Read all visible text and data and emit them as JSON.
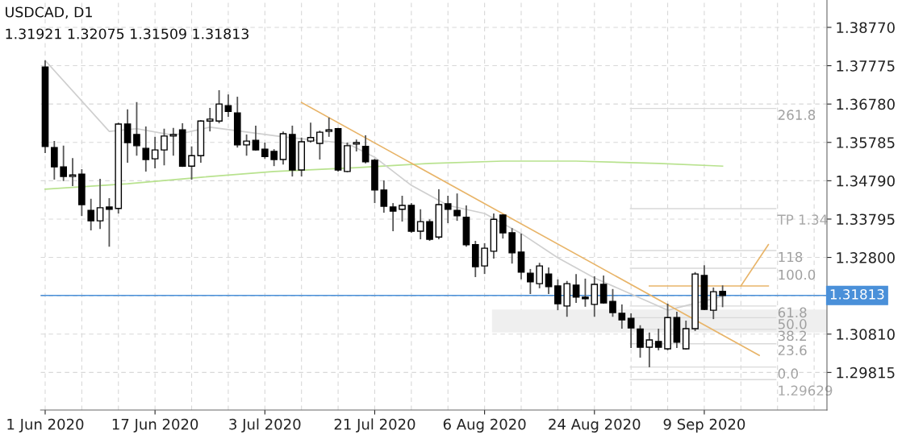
{
  "chart_data": {
    "type": "candlestick",
    "title": "USDCAD, D1",
    "subtitle": "1.31921 1.32075 1.31509 1.31813",
    "categories": [
      "1 Jun 2020",
      null,
      null,
      null,
      null,
      null,
      null,
      null,
      null,
      null,
      null,
      null,
      "17 Jun 2020",
      null,
      null,
      null,
      null,
      null,
      null,
      null,
      null,
      null,
      null,
      null,
      "3 Jul 2020",
      null,
      null,
      null,
      null,
      null,
      null,
      null,
      null,
      null,
      null,
      null,
      "21 Jul 2020",
      null,
      null,
      null,
      null,
      null,
      null,
      null,
      null,
      null,
      null,
      null,
      "6 Aug 2020",
      null,
      null,
      null,
      null,
      null,
      null,
      null,
      null,
      null,
      null,
      null,
      "24 Aug 2020",
      null,
      null,
      null,
      null,
      null,
      null,
      null,
      null,
      null,
      null,
      null,
      "9 Sep 2020",
      null,
      null,
      null,
      null,
      null,
      null,
      null,
      null,
      null,
      null,
      null,
      null,
      null
    ],
    "ohlc": [
      [
        1.3774,
        1.3791,
        1.3551,
        1.3568
      ],
      [
        1.3565,
        1.3582,
        1.3482,
        1.3515
      ],
      [
        1.3515,
        1.357,
        1.3478,
        1.349
      ],
      [
        1.349,
        1.3538,
        1.3465,
        1.3494
      ],
      [
        1.3496,
        1.3509,
        1.3388,
        1.3417
      ],
      [
        1.3402,
        1.3432,
        1.335,
        1.3375
      ],
      [
        1.3375,
        1.3484,
        1.3354,
        1.3409
      ],
      [
        1.3411,
        1.3434,
        1.3308,
        1.3405
      ],
      [
        1.3407,
        1.363,
        1.3394,
        1.3626
      ],
      [
        1.3626,
        1.3664,
        1.3526,
        1.3578
      ],
      [
        1.3599,
        1.3683,
        1.3544,
        1.357
      ],
      [
        1.3563,
        1.362,
        1.3503,
        1.3534
      ],
      [
        1.3536,
        1.3593,
        1.3511,
        1.3559
      ],
      [
        1.3559,
        1.3614,
        1.3519,
        1.3595
      ],
      [
        1.3595,
        1.3616,
        1.3544,
        1.3599
      ],
      [
        1.3611,
        1.3628,
        1.3515,
        1.3517
      ],
      [
        1.3517,
        1.3568,
        1.3482,
        1.3544
      ],
      [
        1.3544,
        1.3636,
        1.3526,
        1.3634
      ],
      [
        1.3634,
        1.3668,
        1.3607,
        1.3639
      ],
      [
        1.3634,
        1.3714,
        1.3628,
        1.3678
      ],
      [
        1.3674,
        1.3703,
        1.3645,
        1.3659
      ],
      [
        1.3655,
        1.3697,
        1.3565,
        1.3572
      ],
      [
        1.3572,
        1.3599,
        1.3544,
        1.3582
      ],
      [
        1.3584,
        1.3622,
        1.3557,
        1.3559
      ],
      [
        1.3561,
        1.3578,
        1.3536,
        1.3542
      ],
      [
        1.3555,
        1.3561,
        1.3517,
        1.3534
      ],
      [
        1.3534,
        1.3607,
        1.3521,
        1.3601
      ],
      [
        1.3599,
        1.3622,
        1.349,
        1.3507
      ],
      [
        1.3507,
        1.3591,
        1.349,
        1.358
      ],
      [
        1.3582,
        1.363,
        1.3578,
        1.3591
      ],
      [
        1.3576,
        1.3609,
        1.3534,
        1.3605
      ],
      [
        1.3607,
        1.3643,
        1.3593,
        1.3611
      ],
      [
        1.3614,
        1.3616,
        1.3503,
        1.3507
      ],
      [
        1.3503,
        1.3578,
        1.3501,
        1.357
      ],
      [
        1.3574,
        1.3586,
        1.3555,
        1.3578
      ],
      [
        1.3568,
        1.3597,
        1.3524,
        1.3528
      ],
      [
        1.3532,
        1.3536,
        1.3421,
        1.3455
      ],
      [
        1.3455,
        1.348,
        1.3396,
        1.3413
      ],
      [
        1.3411,
        1.3421,
        1.3348,
        1.34
      ],
      [
        1.3405,
        1.344,
        1.3373,
        1.3415
      ],
      [
        1.3415,
        1.3421,
        1.3344,
        1.3348
      ],
      [
        1.3348,
        1.3405,
        1.3327,
        1.3373
      ],
      [
        1.3373,
        1.3379,
        1.3323,
        1.3327
      ],
      [
        1.3333,
        1.3457,
        1.3327,
        1.3417
      ],
      [
        1.3419,
        1.344,
        1.3369,
        1.3405
      ],
      [
        1.3402,
        1.3446,
        1.3375,
        1.3388
      ],
      [
        1.3384,
        1.3415,
        1.3308,
        1.3313
      ],
      [
        1.3313,
        1.3323,
        1.3229,
        1.3256
      ],
      [
        1.3258,
        1.3317,
        1.3237,
        1.3304
      ],
      [
        1.3296,
        1.3394,
        1.3277,
        1.3379
      ],
      [
        1.339,
        1.3392,
        1.3329,
        1.3344
      ],
      [
        1.3344,
        1.3356,
        1.3264,
        1.3292
      ],
      [
        1.3294,
        1.3342,
        1.3223,
        1.3242
      ],
      [
        1.3239,
        1.325,
        1.3185,
        1.3217
      ],
      [
        1.3212,
        1.3266,
        1.32,
        1.3258
      ],
      [
        1.3237,
        1.3254,
        1.3185,
        1.3204
      ],
      [
        1.3206,
        1.3223,
        1.3143,
        1.316
      ],
      [
        1.3154,
        1.3219,
        1.3126,
        1.3212
      ],
      [
        1.3208,
        1.3237,
        1.3162,
        1.3177
      ],
      [
        1.3177,
        1.3225,
        1.3152,
        1.3173
      ],
      [
        1.3158,
        1.3231,
        1.3126,
        1.321
      ],
      [
        1.321,
        1.3233,
        1.316,
        1.3162
      ],
      [
        1.3166,
        1.3198,
        1.3126,
        1.3137
      ],
      [
        1.3135,
        1.3158,
        1.3095,
        1.3118
      ],
      [
        1.3122,
        1.3135,
        1.3045,
        1.3097
      ],
      [
        1.3094,
        1.3104,
        1.302,
        1.3047
      ],
      [
        1.3047,
        1.3085,
        1.2995,
        1.3066
      ],
      [
        1.3062,
        1.3095,
        1.3039,
        1.3047
      ],
      [
        1.3043,
        1.316,
        1.3039,
        1.3124
      ],
      [
        1.3124,
        1.3139,
        1.3045,
        1.306
      ],
      [
        1.3043,
        1.3116,
        1.3041,
        1.3095
      ],
      [
        1.3095,
        1.3242,
        1.3089,
        1.3237
      ],
      [
        1.3233,
        1.326,
        1.3143,
        1.3145
      ],
      [
        1.3143,
        1.3202,
        1.312,
        1.3191
      ],
      [
        1.31921,
        1.32075,
        1.31509,
        1.31813
      ],
      null,
      null,
      null,
      null,
      null,
      null,
      null,
      null,
      null,
      null,
      null
    ],
    "series": [
      {
        "type": "line",
        "color": "#b8e28e",
        "values": [
          1.3457,
          null,
          null,
          null,
          null,
          null,
          null,
          null,
          null,
          1.3471,
          null,
          null,
          null,
          null,
          null,
          null,
          null,
          1.3488,
          null,
          null,
          null,
          null,
          null,
          null,
          null,
          1.3503,
          null,
          null,
          null,
          null,
          null,
          null,
          null,
          null,
          1.3513,
          null,
          null,
          null,
          null,
          null,
          null,
          null,
          1.3524,
          null,
          null,
          null,
          null,
          null,
          null,
          null,
          1.353,
          null,
          null,
          null,
          null,
          null,
          null,
          null,
          1.353,
          null,
          null,
          null,
          null,
          null,
          null,
          null,
          null,
          1.3524,
          null,
          null,
          null,
          null,
          null,
          null,
          1.3517,
          null,
          null,
          null,
          null,
          null,
          null,
          null,
          null,
          null,
          null,
          null
        ]
      },
      {
        "type": "line",
        "color": "#cfcfcf",
        "values": [
          1.3791,
          null,
          null,
          null,
          null,
          null,
          null,
          1.3607,
          null,
          null,
          1.3614,
          null,
          null,
          null,
          1.3597,
          null,
          null,
          null,
          1.3618,
          null,
          null,
          null,
          null,
          null,
          null,
          null,
          1.3593,
          null,
          null,
          null,
          null,
          null,
          null,
          1.3576,
          null,
          null,
          1.354,
          null,
          null,
          null,
          1.3467,
          null,
          null,
          null,
          1.3415,
          null,
          null,
          null,
          1.3394,
          null,
          null,
          null,
          1.3342,
          null,
          null,
          null,
          1.3279,
          null,
          null,
          null,
          1.3227,
          null,
          null,
          null,
          1.3185,
          null,
          null,
          null,
          1.3143,
          null,
          null,
          null,
          null,
          null,
          1.3179,
          null,
          null,
          null,
          null,
          null,
          null,
          null,
          null,
          null,
          null,
          null
        ]
      },
      {
        "type": "line",
        "color": "#e8b468",
        "values": [
          null,
          null,
          null,
          null,
          null,
          null,
          null,
          null,
          null,
          null,
          null,
          null,
          null,
          null,
          null,
          null,
          null,
          null,
          null,
          null,
          null,
          null,
          null,
          null,
          null,
          null,
          null,
          null,
          1.3682,
          null,
          null,
          null,
          null,
          null,
          null,
          null,
          null,
          null,
          null,
          null,
          null,
          null,
          null,
          null,
          null,
          null,
          null,
          null,
          null,
          null,
          null,
          null,
          null,
          null,
          null,
          null,
          null,
          null,
          null,
          null,
          null,
          null,
          null,
          null,
          null,
          null,
          null,
          null,
          null,
          null,
          null,
          null,
          null,
          null,
          null,
          null,
          null,
          null,
          1.3026,
          null,
          null,
          null,
          null,
          null,
          null,
          null
        ]
      },
      {
        "type": "line",
        "color": "#e8b468",
        "values": [
          null,
          null,
          null,
          null,
          null,
          null,
          null,
          null,
          null,
          null,
          null,
          null,
          null,
          null,
          null,
          null,
          null,
          null,
          null,
          null,
          null,
          null,
          null,
          null,
          null,
          null,
          null,
          null,
          null,
          null,
          null,
          null,
          null,
          null,
          null,
          null,
          null,
          null,
          null,
          null,
          null,
          null,
          null,
          null,
          null,
          null,
          null,
          null,
          null,
          null,
          null,
          null,
          null,
          null,
          null,
          null,
          null,
          null,
          null,
          null,
          null,
          null,
          null,
          null,
          null,
          null,
          1.3206,
          null,
          null,
          null,
          null,
          null,
          null,
          null,
          null,
          null,
          null,
          null,
          null,
          1.3206,
          null,
          null,
          null,
          null,
          null,
          null
        ]
      },
      {
        "type": "line",
        "color": "#e8b468",
        "values": [
          null,
          null,
          null,
          null,
          null,
          null,
          null,
          null,
          null,
          null,
          null,
          null,
          null,
          null,
          null,
          null,
          null,
          null,
          null,
          null,
          null,
          null,
          null,
          null,
          null,
          null,
          null,
          null,
          null,
          null,
          null,
          null,
          null,
          null,
          null,
          null,
          null,
          null,
          null,
          null,
          null,
          null,
          null,
          null,
          null,
          null,
          null,
          null,
          null,
          null,
          null,
          null,
          null,
          null,
          null,
          null,
          null,
          null,
          null,
          null,
          null,
          null,
          null,
          null,
          null,
          null,
          null,
          null,
          null,
          null,
          null,
          null,
          null,
          null,
          null,
          null,
          1.3206,
          null,
          null,
          1.3313,
          null,
          null,
          null,
          null,
          null,
          null
        ]
      }
    ],
    "ylim": [
      1.2884,
      1.3948
    ],
    "yticks": [
      {
        "value": 1.3877,
        "label": "1.38770"
      },
      {
        "value": 1.37775,
        "label": "1.37775"
      },
      {
        "value": 1.3678,
        "label": "1.36780"
      },
      {
        "value": 1.35785,
        "label": "1.35785"
      },
      {
        "value": 1.3479,
        "label": "1.34790"
      },
      {
        "value": 1.33795,
        "label": "1.33795"
      },
      {
        "value": 1.328,
        "label": "1.32800"
      },
      {
        "value": 1.31805,
        "label": null
      },
      {
        "value": 1.3081,
        "label": "1.30810"
      },
      {
        "value": 1.29815,
        "label": "1.29815"
      }
    ],
    "grid": true,
    "ref_lines": [
      {
        "axis": "y",
        "value": 1.31813,
        "label": "1.31813",
        "color": "#4a90d9"
      },
      {
        "axis": "y",
        "value": 1.36665,
        "color": "#d9d9d9"
      },
      {
        "axis": "y",
        "value": 1.34065,
        "label": "TP 1.34",
        "color": "#d9d9d9"
      },
      {
        "axis": "y",
        "value": 1.32979,
        "color": "#d9d9d9"
      },
      {
        "axis": "y",
        "value": 1.32518,
        "color": "#d9d9d9"
      },
      {
        "axis": "y",
        "value": 1.31539,
        "color": "#d9d9d9"
      },
      {
        "axis": "y",
        "value": 1.31237,
        "color": "#d9d9d9"
      },
      {
        "axis": "y",
        "value": 1.30934,
        "color": "#d9d9d9"
      },
      {
        "axis": "y",
        "value": 1.3056,
        "color": "#d9d9d9"
      },
      {
        "axis": "y",
        "value": 1.29955,
        "color": "#d9d9d9"
      },
      {
        "axis": "y",
        "value": 1.29629,
        "label": "1.29629",
        "color": "#d9d9d9"
      }
    ],
    "annotations": [
      "261.8",
      "118",
      "100.0",
      "61.8",
      "50.0",
      "38.2",
      "23.6",
      "0.0"
    ],
    "bands": [
      {
        "axis": "y",
        "from": 1.3085,
        "to": 1.3145,
        "color": "#efefef"
      }
    ]
  }
}
